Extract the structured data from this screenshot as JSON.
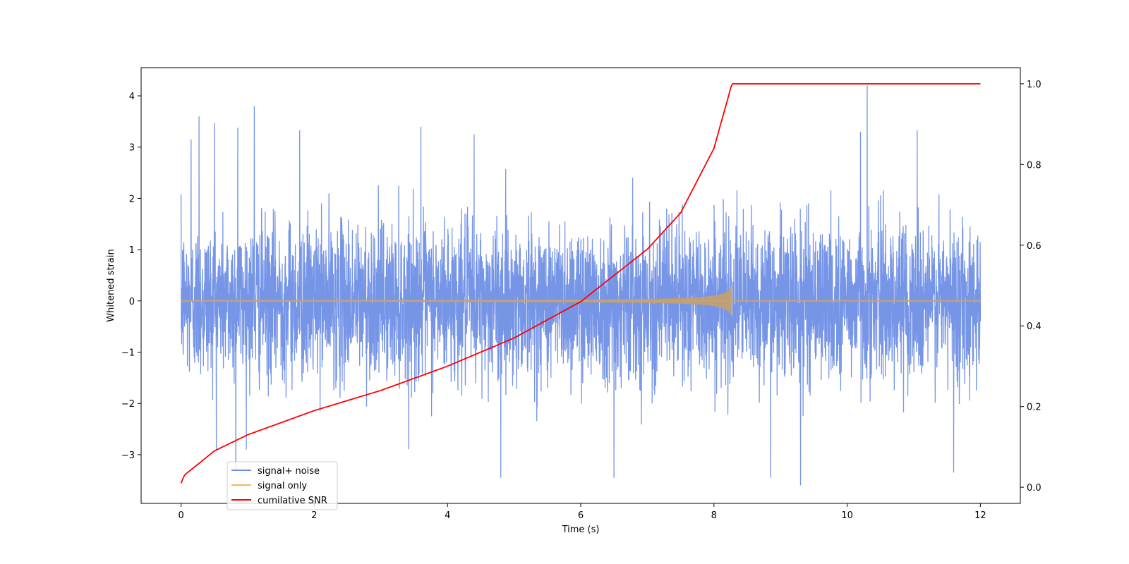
{
  "chart_data": {
    "type": "line",
    "xlabel": "Time (s)",
    "ylabel": "Whitened strain",
    "y2label": "",
    "xlim": [
      -0.6,
      12.6
    ],
    "ylim": [
      -3.95,
      4.55
    ],
    "y2lim": [
      -0.04,
      1.04
    ],
    "x_ticks": [
      0,
      2,
      4,
      6,
      8,
      10,
      12
    ],
    "y_ticks": [
      -3,
      -2,
      -1,
      0,
      1,
      2,
      3,
      4
    ],
    "y2_ticks": [
      0.0,
      0.2,
      0.4,
      0.6,
      0.8,
      1.0
    ],
    "x_tick_labels": [
      "0",
      "2",
      "4",
      "6",
      "8",
      "10",
      "12"
    ],
    "y_tick_labels": [
      "−3",
      "−2",
      "−1",
      "0",
      "1",
      "2",
      "3",
      "4"
    ],
    "y2_tick_labels": [
      "0.0",
      "0.2",
      "0.4",
      "0.6",
      "0.8",
      "1.0"
    ],
    "legend_position": "lower-left",
    "duration_s": 12,
    "merger_time_s": 8.27,
    "series": [
      {
        "name": "signal+ noise",
        "axis": "left",
        "color": "#6f8fe6",
        "description_values": "noise band roughly ±1.5, peaks up to 4.2 near t=10.3",
        "noise_std": 0.75,
        "peaks": [
          [
            0.15,
            3.15
          ],
          [
            0.27,
            3.6
          ],
          [
            0.5,
            3.47
          ],
          [
            0.85,
            3.38
          ],
          [
            1.1,
            3.8
          ],
          [
            1.78,
            3.33
          ],
          [
            3.6,
            3.4
          ],
          [
            4.4,
            3.25
          ],
          [
            10.3,
            4.2
          ],
          [
            10.2,
            3.3
          ],
          [
            11.05,
            3.33
          ],
          [
            0.82,
            -3.3
          ],
          [
            4.8,
            -3.45
          ],
          [
            6.5,
            -3.45
          ],
          [
            9.3,
            -3.6
          ],
          [
            8.85,
            -3.45
          ],
          [
            11.6,
            -3.35
          ]
        ]
      },
      {
        "name": "signal only",
        "axis": "left",
        "color": "#f5b562",
        "chirp_amplitude_end": 0.32
      },
      {
        "name": "cumilative SNR",
        "axis": "right",
        "color": "#ff0000",
        "x": [
          0,
          0.05,
          0.5,
          1,
          2,
          3,
          4,
          5,
          6,
          7,
          7.5,
          8,
          8.27,
          12
        ],
        "values": [
          0.01,
          0.03,
          0.09,
          0.13,
          0.19,
          0.24,
          0.3,
          0.37,
          0.46,
          0.59,
          0.68,
          0.84,
          1.0,
          1.0
        ]
      }
    ]
  }
}
